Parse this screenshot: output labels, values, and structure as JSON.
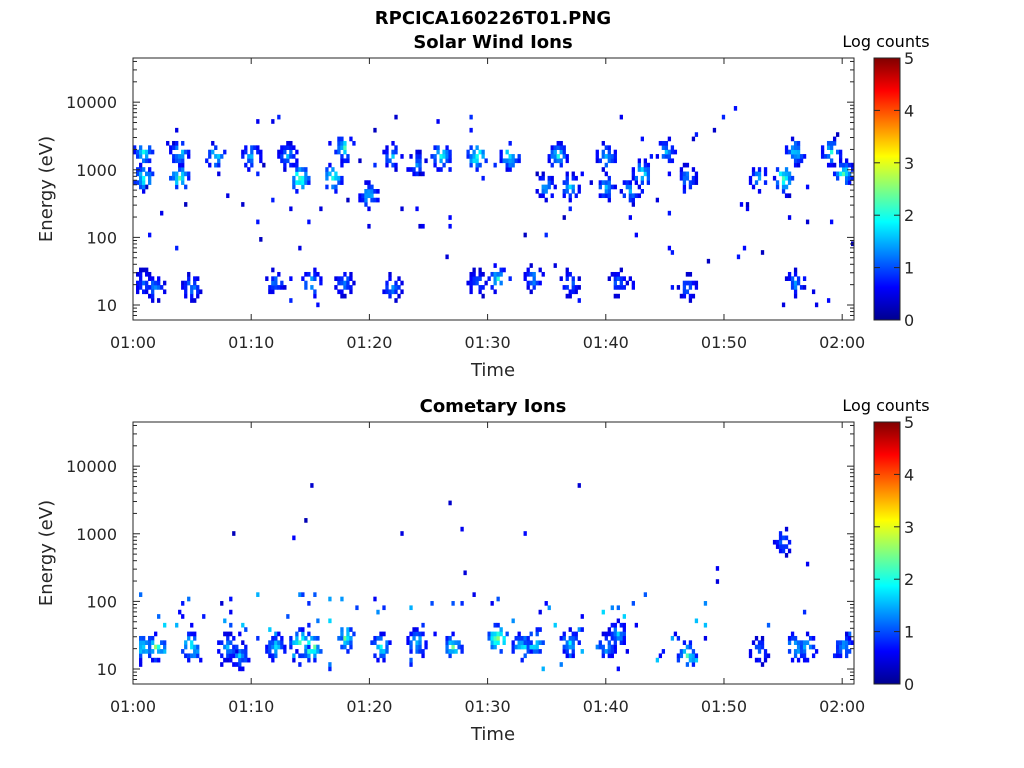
{
  "figure": {
    "title": "RPCICA160226T01.PNG"
  },
  "colorbar": {
    "label": "Log counts",
    "ticks": [
      "0",
      "1",
      "2",
      "3",
      "4",
      "5"
    ],
    "range": [
      0,
      5
    ],
    "colormap": "jet"
  },
  "chart_data": [
    {
      "type": "heatmap",
      "title": "Solar Wind Ions",
      "xlabel": "Time",
      "ylabel": "Energy (eV)",
      "yscale": "log",
      "xlim": [
        "01:00",
        "02:01"
      ],
      "ylim": [
        6,
        45000
      ],
      "x_ticks": [
        "01:00",
        "01:10",
        "01:20",
        "01:30",
        "01:40",
        "01:50",
        "02:00"
      ],
      "y_ticks": [
        "10",
        "100",
        "1000",
        "10000"
      ],
      "zlabel": "Log counts",
      "zlim": [
        0,
        5
      ],
      "seed": 11,
      "scatter_density": 1.0,
      "bands": [
        {
          "t0": "01:00",
          "t1": "02:01",
          "energy": [
            150,
            8000
          ],
          "level": 0.5,
          "density": 0.012
        },
        {
          "t0": "01:00",
          "t1": "02:01",
          "energy": [
            10,
            300
          ],
          "level": 0.5,
          "density": 0.006
        }
      ],
      "blobs": [
        {
          "time": "01:01",
          "energy": 700,
          "level": 2.0
        },
        {
          "time": "01:01",
          "energy": 1800,
          "level": 1.9
        },
        {
          "time": "01:04",
          "energy": 700,
          "level": 2.1
        },
        {
          "time": "01:04",
          "energy": 1800,
          "level": 1.7
        },
        {
          "time": "01:07",
          "energy": 1700,
          "level": 1.8
        },
        {
          "time": "01:10",
          "energy": 1600,
          "level": 1.7
        },
        {
          "time": "01:13",
          "energy": 1500,
          "level": 1.5
        },
        {
          "time": "01:14",
          "energy": 700,
          "level": 2.4
        },
        {
          "time": "01:17",
          "energy": 800,
          "level": 2.2
        },
        {
          "time": "01:18",
          "energy": 2000,
          "level": 2.0
        },
        {
          "time": "01:20",
          "energy": 400,
          "level": 1.6
        },
        {
          "time": "01:22",
          "energy": 1500,
          "level": 1.5
        },
        {
          "time": "01:24",
          "energy": 1100,
          "level": 1.4
        },
        {
          "time": "01:26",
          "energy": 1600,
          "level": 2.0
        },
        {
          "time": "01:29",
          "energy": 1600,
          "level": 2.3
        },
        {
          "time": "01:32",
          "energy": 1600,
          "level": 2.0
        },
        {
          "time": "01:35",
          "energy": 600,
          "level": 1.5
        },
        {
          "time": "01:36",
          "energy": 1700,
          "level": 1.8
        },
        {
          "time": "01:37",
          "energy": 600,
          "level": 1.6
        },
        {
          "time": "01:40",
          "energy": 1700,
          "level": 1.7
        },
        {
          "time": "01:40",
          "energy": 600,
          "level": 1.6
        },
        {
          "time": "01:42",
          "energy": 500,
          "level": 1.5
        },
        {
          "time": "01:43",
          "energy": 900,
          "level": 1.9
        },
        {
          "time": "01:45",
          "energy": 1800,
          "level": 1.5
        },
        {
          "time": "01:47",
          "energy": 800,
          "level": 1.4
        },
        {
          "time": "01:53",
          "energy": 800,
          "level": 1.5
        },
        {
          "time": "01:55",
          "energy": 800,
          "level": 2.3
        },
        {
          "time": "01:56",
          "energy": 1900,
          "level": 1.8
        },
        {
          "time": "01:59",
          "energy": 1800,
          "level": 1.8
        },
        {
          "time": "02:00",
          "energy": 900,
          "level": 2.0
        },
        {
          "time": "01:01",
          "energy": 20,
          "level": 1.2
        },
        {
          "time": "01:02",
          "energy": 17,
          "level": 1.4
        },
        {
          "time": "01:05",
          "energy": 18,
          "level": 1.3
        },
        {
          "time": "01:12",
          "energy": 20,
          "level": 1.3
        },
        {
          "time": "01:15",
          "energy": 22,
          "level": 1.7
        },
        {
          "time": "01:18",
          "energy": 22,
          "level": 1.3
        },
        {
          "time": "01:22",
          "energy": 18,
          "level": 1.3
        },
        {
          "time": "01:29",
          "energy": 20,
          "level": 1.2
        },
        {
          "time": "01:31",
          "energy": 25,
          "level": 1.8
        },
        {
          "time": "01:34",
          "energy": 25,
          "level": 1.4
        },
        {
          "time": "01:37",
          "energy": 22,
          "level": 1.3
        },
        {
          "time": "01:41",
          "energy": 22,
          "level": 1.2
        },
        {
          "time": "01:47",
          "energy": 18,
          "level": 1.2
        },
        {
          "time": "01:56",
          "energy": 22,
          "level": 1.4
        }
      ]
    },
    {
      "type": "heatmap",
      "title": "Cometary Ions",
      "xlabel": "Time",
      "ylabel": "Energy (eV)",
      "yscale": "log",
      "xlim": [
        "01:00",
        "02:01"
      ],
      "ylim": [
        6,
        45000
      ],
      "x_ticks": [
        "01:00",
        "01:10",
        "01:20",
        "01:30",
        "01:40",
        "01:50",
        "02:00"
      ],
      "y_ticks": [
        "10",
        "100",
        "1000",
        "10000"
      ],
      "zlabel": "Log counts",
      "zlim": [
        0,
        5
      ],
      "seed": 29,
      "scatter_density": 0.6,
      "bands": [
        {
          "t0": "01:00",
          "t1": "01:49",
          "energy": [
            10,
            120
          ],
          "level": 1.0,
          "density": 0.05
        },
        {
          "t0": "01:49",
          "t1": "02:01",
          "energy": [
            10,
            100
          ],
          "level": 0.8,
          "density": 0.018
        },
        {
          "t0": "01:00",
          "t1": "02:01",
          "energy": [
            100,
            5000
          ],
          "level": 0.4,
          "density": 0.005
        }
      ],
      "blobs": [
        {
          "time": "01:01",
          "energy": 20,
          "level": 2.0
        },
        {
          "time": "01:02",
          "energy": 22,
          "level": 2.3
        },
        {
          "time": "01:05",
          "energy": 20,
          "level": 2.2
        },
        {
          "time": "01:08",
          "energy": 20,
          "level": 1.6
        },
        {
          "time": "01:09",
          "energy": 15,
          "level": 1.6
        },
        {
          "time": "01:12",
          "energy": 20,
          "level": 1.8
        },
        {
          "time": "01:14",
          "energy": 25,
          "level": 2.5
        },
        {
          "time": "01:15",
          "energy": 22,
          "level": 2.6
        },
        {
          "time": "01:18",
          "energy": 30,
          "level": 2.3
        },
        {
          "time": "01:21",
          "energy": 20,
          "level": 2.0
        },
        {
          "time": "01:24",
          "energy": 25,
          "level": 1.8
        },
        {
          "time": "01:27",
          "energy": 20,
          "level": 2.1
        },
        {
          "time": "01:31",
          "energy": 28,
          "level": 2.7
        },
        {
          "time": "01:33",
          "energy": 20,
          "level": 2.0
        },
        {
          "time": "01:34",
          "energy": 25,
          "level": 2.1
        },
        {
          "time": "01:37",
          "energy": 25,
          "level": 1.7
        },
        {
          "time": "01:40",
          "energy": 22,
          "level": 1.6
        },
        {
          "time": "01:41",
          "energy": 35,
          "level": 1.5
        },
        {
          "time": "01:47",
          "energy": 15,
          "level": 2.2
        },
        {
          "time": "01:53",
          "energy": 18,
          "level": 1.3
        },
        {
          "time": "01:56",
          "energy": 20,
          "level": 1.9
        },
        {
          "time": "01:57",
          "energy": 20,
          "level": 1.7
        },
        {
          "time": "02:00",
          "energy": 20,
          "level": 1.6
        },
        {
          "time": "01:55",
          "energy": 800,
          "level": 1.3
        }
      ]
    }
  ]
}
